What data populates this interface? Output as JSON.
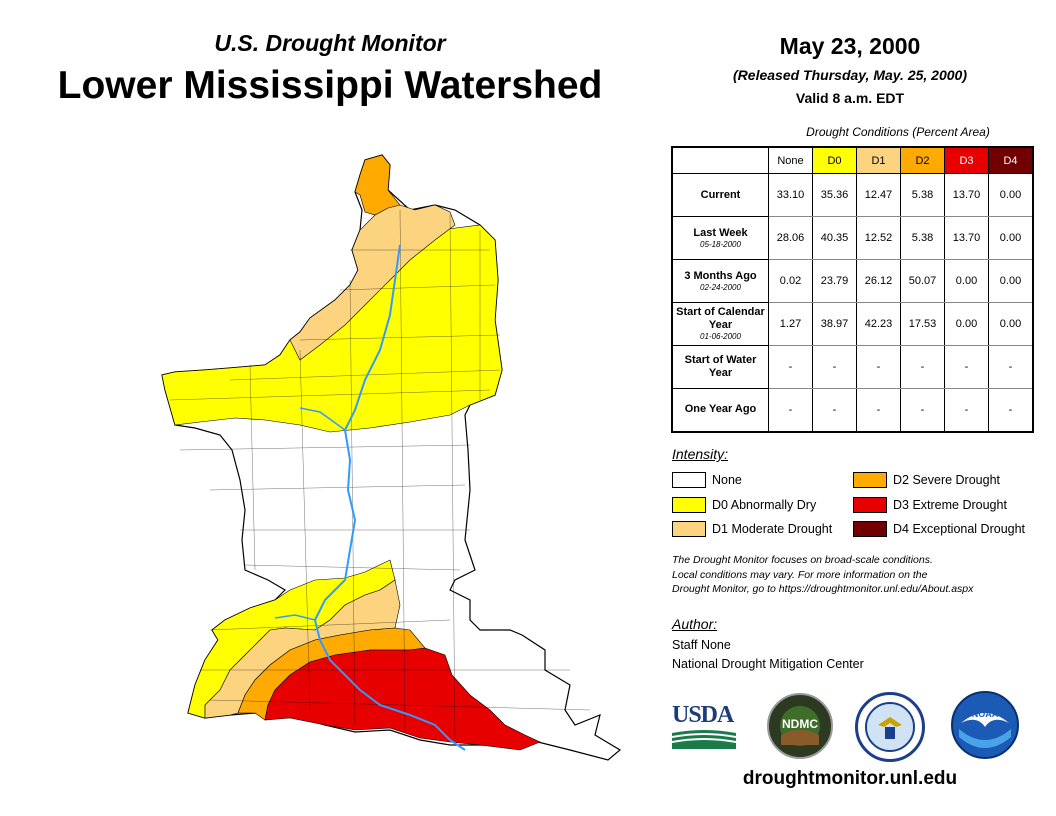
{
  "header": {
    "subtitle": "U.S. Drought Monitor",
    "title": "Lower Mississippi Watershed",
    "date": "May 23, 2000",
    "released": "(Released Thursday, May. 25, 2000)",
    "valid": "Valid 8 a.m. EDT"
  },
  "table": {
    "caption": "Drought Conditions (Percent Area)",
    "columns": [
      "None",
      "D0",
      "D1",
      "D2",
      "D3",
      "D4"
    ],
    "column_colors": [
      "#ffffff",
      "#ffff00",
      "#fcd37f",
      "#ffaa00",
      "#e60000",
      "#730000"
    ],
    "rows": [
      {
        "label": "Current",
        "date": "",
        "values": [
          "33.10",
          "35.36",
          "12.47",
          "5.38",
          "13.70",
          "0.00"
        ]
      },
      {
        "label": "Last Week",
        "date": "05-18-2000",
        "values": [
          "28.06",
          "40.35",
          "12.52",
          "5.38",
          "13.70",
          "0.00"
        ]
      },
      {
        "label": "3 Months Ago",
        "date": "02-24-2000",
        "values": [
          "0.02",
          "23.79",
          "26.12",
          "50.07",
          "0.00",
          "0.00"
        ]
      },
      {
        "label": "Start of Calendar Year",
        "date": "01-06-2000",
        "values": [
          "1.27",
          "38.97",
          "42.23",
          "17.53",
          "0.00",
          "0.00"
        ]
      },
      {
        "label": "Start of Water Year",
        "date": "",
        "values": [
          "-",
          "-",
          "-",
          "-",
          "-",
          "-"
        ]
      },
      {
        "label": "One Year Ago",
        "date": "",
        "values": [
          "-",
          "-",
          "-",
          "-",
          "-",
          "-"
        ]
      }
    ]
  },
  "legend": {
    "title": "Intensity:",
    "items": [
      {
        "label": "None",
        "color": "#ffffff"
      },
      {
        "label": "D0 Abnormally Dry",
        "color": "#ffff00"
      },
      {
        "label": "D1 Moderate Drought",
        "color": "#fcd37f"
      },
      {
        "label": "D2 Severe Drought",
        "color": "#ffaa00"
      },
      {
        "label": "D3 Extreme Drought",
        "color": "#e60000"
      },
      {
        "label": "D4 Exceptional Drought",
        "color": "#730000"
      }
    ]
  },
  "note": {
    "line1": "The Drought Monitor focuses on broad-scale conditions.",
    "line2": "Local conditions may vary. For more information on the",
    "line3": "Drought Monitor, go to https://droughtmonitor.unl.edu/About.aspx"
  },
  "author": {
    "title": "Author:",
    "name": "Staff None",
    "org": "National Drought Mitigation Center"
  },
  "logos": {
    "usda": "USDA",
    "ndmc": "NDMC",
    "noaa": "NOAA"
  },
  "website": "droughtmonitor.unl.edu",
  "map": {
    "colors": {
      "none": "#ffffff",
      "d0": "#ffff00",
      "d1": "#fcd37f",
      "d2": "#ffaa00",
      "d3": "#e60000",
      "river": "#3399ff"
    }
  }
}
